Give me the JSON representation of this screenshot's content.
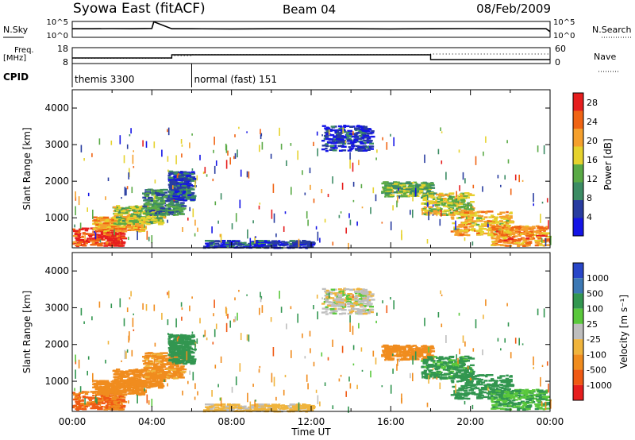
{
  "header": {
    "station": "Syowa East (fitACF)",
    "beam": "Beam 04",
    "date": "08/Feb/2009"
  },
  "chart_data": [
    {
      "type": "line",
      "panel": "noise",
      "left_label": "N.Sky",
      "right_label": "N.Search",
      "left_ticks": [
        "10^5",
        "10^0"
      ],
      "right_ticks": [
        "10^5",
        "10^0"
      ],
      "scale": "log",
      "series": [
        {
          "name": "N.Sky",
          "style": "solid",
          "x": [
            0,
            1,
            2,
            3,
            4,
            4.1,
            5,
            6,
            8,
            10,
            12,
            14,
            16,
            18,
            20,
            22,
            23.8,
            24
          ],
          "y": [
            2.7,
            2.7,
            2.75,
            2.7,
            2.8,
            4.9,
            2.7,
            2.7,
            2.65,
            2.7,
            2.7,
            2.7,
            2.65,
            2.7,
            2.75,
            2.7,
            2.7,
            1.8
          ]
        }
      ]
    },
    {
      "type": "line",
      "panel": "frequency",
      "left_label": "Freq.\n[MHz]",
      "right_label": "Nave",
      "left_ticks": [
        "18",
        "8"
      ],
      "right_ticks": [
        "60",
        "0"
      ],
      "series": [
        {
          "name": "Freq.",
          "style": "solid",
          "x": [
            0,
            5,
            5,
            18,
            18,
            24
          ],
          "y": [
            11.5,
            11.5,
            13.5,
            13.5,
            10.5,
            10.5
          ]
        },
        {
          "name": "Nave",
          "style": "dotted",
          "x": [
            0,
            5,
            5,
            6,
            6,
            18,
            18,
            24
          ],
          "y": [
            20,
            20,
            30,
            30,
            34,
            34,
            36,
            36
          ]
        }
      ]
    },
    {
      "type": "table",
      "panel": "cpid",
      "label": "CPID",
      "segments": [
        {
          "start": 0,
          "end": 6,
          "text": "themis 3300"
        },
        {
          "start": 6,
          "end": 24,
          "text": "normal (fast) 151"
        }
      ]
    },
    {
      "type": "heatmap",
      "panel": "power",
      "ylabel": "Slant Range [km]",
      "ylim": [
        180,
        4500
      ],
      "yticks": [
        1000,
        2000,
        3000,
        4000
      ],
      "xlim": [
        0,
        24
      ],
      "colorbar_label": "Power [dB]",
      "colorbar_ticks": [
        4,
        8,
        12,
        16,
        20,
        24,
        28
      ],
      "colorbar_range": [
        0,
        30
      ],
      "colors": [
        "#1414e6",
        "#283ca0",
        "#3c8c64",
        "#5aaa46",
        "#e6d22d",
        "#f5a02d",
        "#f06414",
        "#e61e1e"
      ],
      "regions": [
        {
          "t0": 0.0,
          "t1": 2.5,
          "r0": 250,
          "r1": 750,
          "level": 27
        },
        {
          "t0": 1.0,
          "t1": 3.5,
          "r0": 650,
          "r1": 1050,
          "level": 20
        },
        {
          "t0": 2.0,
          "t1": 4.5,
          "r0": 850,
          "r1": 1350,
          "level": 15
        },
        {
          "t0": 3.5,
          "t1": 5.5,
          "r0": 1100,
          "r1": 1800,
          "level": 10
        },
        {
          "t0": 4.8,
          "t1": 6.0,
          "r0": 1500,
          "r1": 2300,
          "level": 6
        },
        {
          "t0": 6.5,
          "t1": 12.0,
          "r0": 200,
          "r1": 400,
          "level": 5
        },
        {
          "t0": 12.5,
          "t1": 15.0,
          "r0": 2850,
          "r1": 3550,
          "level": 5
        },
        {
          "t0": 15.5,
          "t1": 18.0,
          "r0": 1600,
          "r1": 2000,
          "level": 13
        },
        {
          "t0": 17.5,
          "t1": 20.0,
          "r0": 1100,
          "r1": 1700,
          "level": 16
        },
        {
          "t0": 19.0,
          "t1": 22.0,
          "r0": 550,
          "r1": 1200,
          "level": 19
        },
        {
          "t0": 21.0,
          "t1": 23.8,
          "r0": 250,
          "r1": 800,
          "level": 22
        }
      ]
    },
    {
      "type": "heatmap",
      "panel": "velocity",
      "xlabel": "Time UT",
      "ylabel": "Slant Range [km]",
      "ylim": [
        180,
        4500
      ],
      "yticks": [
        1000,
        2000,
        3000,
        4000
      ],
      "xlim": [
        0,
        24
      ],
      "xticks": [
        "00:00",
        "04:00",
        "08:00",
        "12:00",
        "16:00",
        "20:00",
        "00:00"
      ],
      "colorbar_label": "Velocity  [m s⁻¹]",
      "colorbar_ticks": [
        "1000",
        "500",
        "100",
        "25",
        "-25",
        "-100",
        "-500",
        "-1000"
      ],
      "colors": [
        "#2846c8",
        "#3c78b4",
        "#329650",
        "#5ac83c",
        "#bebebe",
        "#f0b43c",
        "#f08c1e",
        "#f05a14",
        "#e61e1e"
      ],
      "regions": [
        {
          "t0": 0.0,
          "t1": 2.5,
          "r0": 250,
          "r1": 750,
          "level": -600
        },
        {
          "t0": 1.0,
          "t1": 3.5,
          "r0": 650,
          "r1": 1050,
          "level": -300
        },
        {
          "t0": 2.0,
          "t1": 4.5,
          "r0": 850,
          "r1": 1350,
          "level": -300
        },
        {
          "t0": 3.5,
          "t1": 5.5,
          "r0": 1100,
          "r1": 1800,
          "level": -150
        },
        {
          "t0": 4.8,
          "t1": 6.0,
          "r0": 1500,
          "r1": 2300,
          "level": 200
        },
        {
          "t0": 6.5,
          "t1": 12.0,
          "r0": 200,
          "r1": 400,
          "level": -50
        },
        {
          "t0": 12.5,
          "t1": 15.0,
          "r0": 2850,
          "r1": 3550,
          "level": 0
        },
        {
          "t0": 15.5,
          "t1": 18.0,
          "r0": 1600,
          "r1": 2000,
          "level": -200
        },
        {
          "t0": 17.5,
          "t1": 20.0,
          "r0": 1100,
          "r1": 1700,
          "level": 150
        },
        {
          "t0": 19.0,
          "t1": 22.0,
          "r0": 550,
          "r1": 1200,
          "level": 250
        },
        {
          "t0": 21.0,
          "t1": 23.8,
          "r0": 250,
          "r1": 800,
          "level": 100
        }
      ]
    }
  ]
}
